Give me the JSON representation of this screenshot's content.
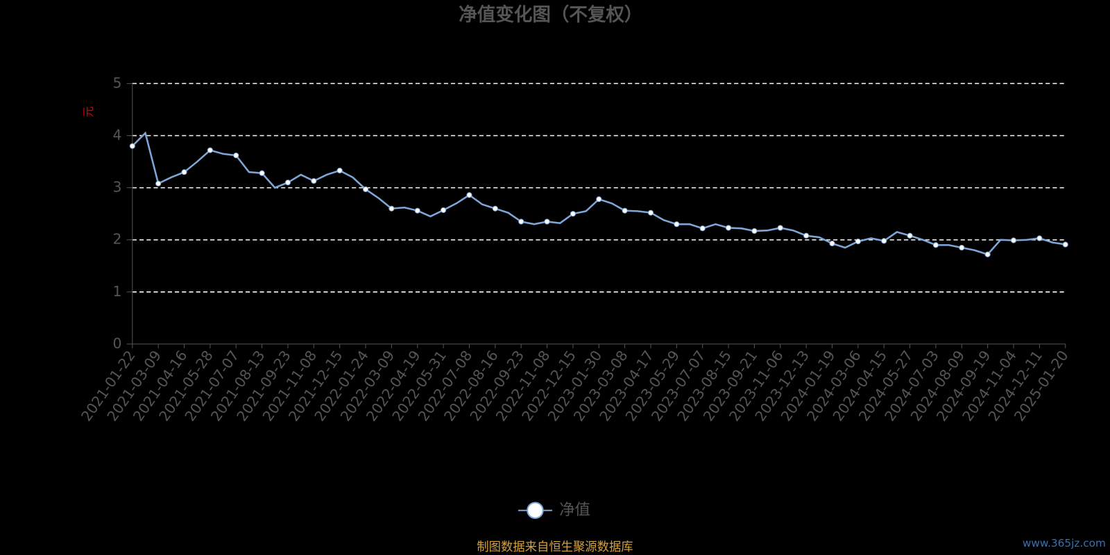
{
  "chart_data": {
    "type": "line",
    "title": "净值变化图（不复权）",
    "y_label": "元",
    "categories": [
      "2021-01-22",
      null,
      "2021-03-09",
      null,
      "2021-04-16",
      null,
      "2021-05-28",
      null,
      "2021-07-07",
      null,
      "2021-08-13",
      null,
      "2021-09-23",
      null,
      "2021-11-08",
      null,
      "2021-12-15",
      null,
      "2022-01-24",
      null,
      "2022-03-09",
      null,
      "2022-04-19",
      null,
      "2022-05-31",
      null,
      "2022-07-08",
      null,
      "2022-08-16",
      null,
      "2022-09-23",
      null,
      "2022-11-08",
      null,
      "2022-12-15",
      null,
      "2023-01-30",
      null,
      "2023-03-08",
      null,
      "2023-04-17",
      null,
      "2023-05-29",
      null,
      "2023-07-07",
      null,
      "2023-08-15",
      null,
      "2023-09-21",
      null,
      "2023-11-06",
      null,
      "2023-12-13",
      null,
      "2024-01-19",
      null,
      "2024-03-06",
      null,
      "2024-04-15",
      null,
      "2024-05-27",
      null,
      "2024-07-03",
      null,
      "2024-08-09",
      null,
      "2024-09-19",
      null,
      "2024-11-04",
      null,
      "2024-12-11",
      null,
      "2025-01-20"
    ],
    "series": [
      {
        "name": "净值",
        "color": "#7ea6d8",
        "values": [
          3.8,
          4.05,
          3.08,
          3.2,
          3.3,
          3.5,
          3.72,
          3.65,
          3.62,
          3.3,
          3.28,
          3.0,
          3.1,
          3.25,
          3.13,
          3.25,
          3.33,
          3.2,
          2.97,
          2.8,
          2.6,
          2.62,
          2.56,
          2.45,
          2.57,
          2.7,
          2.86,
          2.68,
          2.6,
          2.52,
          2.35,
          2.3,
          2.35,
          2.32,
          2.5,
          2.55,
          2.78,
          2.7,
          2.56,
          2.55,
          2.52,
          2.38,
          2.3,
          2.3,
          2.22,
          2.3,
          2.23,
          2.22,
          2.17,
          2.18,
          2.23,
          2.18,
          2.08,
          2.05,
          1.93,
          1.85,
          1.97,
          2.03,
          1.98,
          2.15,
          2.08,
          2.0,
          1.9,
          1.9,
          1.85,
          1.8,
          1.72,
          2.0,
          1.99,
          2.0,
          2.03,
          1.95,
          1.91
        ]
      }
    ],
    "ylim": [
      0,
      5
    ],
    "yticks": [
      0,
      1,
      2,
      3,
      4,
      5
    ],
    "grid": true,
    "source": "制图数据来自恒生聚源数据库",
    "watermark": "www.365jz.com"
  }
}
